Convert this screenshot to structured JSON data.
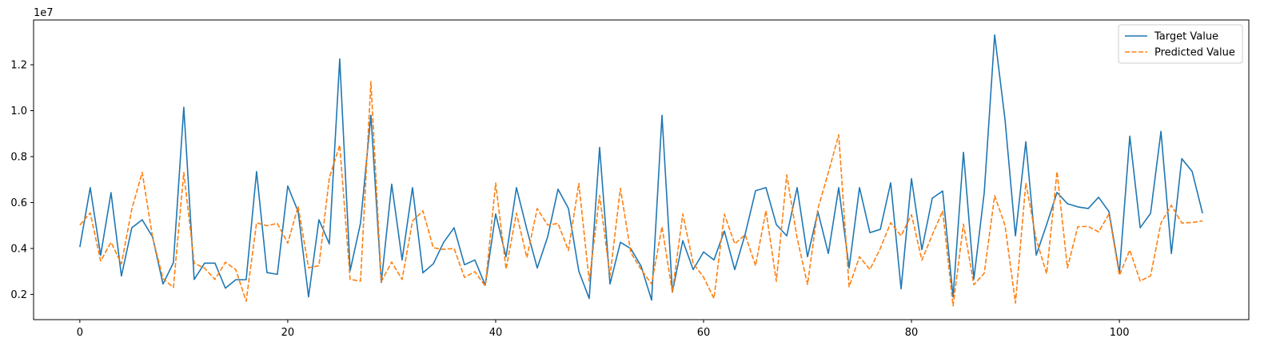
{
  "chart_data": {
    "type": "line",
    "title": "",
    "xlabel": "",
    "ylabel": "",
    "y_offset_label": "1e7",
    "y_scale": 10000000,
    "xlim": [
      -4.45,
      112.45
    ],
    "ylim": [
      900000,
      13950000
    ],
    "x_ticks": [
      0,
      20,
      40,
      60,
      80,
      100
    ],
    "x_tick_labels": [
      "0",
      "20",
      "40",
      "60",
      "80",
      "100"
    ],
    "y_ticks": [
      2000000,
      4000000,
      6000000,
      8000000,
      10000000,
      12000000
    ],
    "y_tick_labels": [
      "0.2",
      "0.4",
      "0.6",
      "0.8",
      "1.0",
      "1.2"
    ],
    "grid": false,
    "legend_position": "top-right",
    "x": [
      0,
      1,
      2,
      3,
      4,
      5,
      6,
      7,
      8,
      9,
      10,
      11,
      12,
      13,
      14,
      15,
      16,
      17,
      18,
      19,
      20,
      21,
      22,
      23,
      24,
      25,
      26,
      27,
      28,
      29,
      30,
      31,
      32,
      33,
      34,
      35,
      36,
      37,
      38,
      39,
      40,
      41,
      42,
      43,
      44,
      45,
      46,
      47,
      48,
      49,
      50,
      51,
      52,
      53,
      54,
      55,
      56,
      57,
      58,
      59,
      60,
      61,
      62,
      63,
      64,
      65,
      66,
      67,
      68,
      69,
      70,
      71,
      72,
      73,
      74,
      75,
      76,
      77,
      78,
      79,
      80,
      81,
      82,
      83,
      84,
      85,
      86,
      87,
      88,
      89,
      90,
      91,
      92,
      93,
      94,
      95,
      96,
      97,
      98,
      99,
      100,
      101,
      102,
      103,
      104,
      105,
      106,
      107,
      108
    ],
    "series": [
      {
        "name": "Target Value",
        "color": "#1f77b4",
        "dash": "solid",
        "values": [
          4060000,
          6650000,
          3700000,
          6430000,
          2800000,
          4900000,
          5250000,
          4500000,
          2450000,
          3380000,
          10150000,
          2650000,
          3360000,
          3360000,
          2270000,
          2640000,
          2640000,
          7350000,
          2950000,
          2870000,
          6720000,
          5600000,
          1890000,
          5250000,
          4200000,
          12250000,
          3030000,
          5100000,
          9800000,
          2520000,
          6800000,
          3500000,
          6650000,
          2940000,
          3330000,
          4270000,
          4900000,
          3290000,
          3500000,
          2400000,
          5500000,
          3640000,
          6650000,
          4830000,
          3150000,
          4500000,
          6580000,
          5740000,
          3010000,
          1820000,
          8400000,
          2450000,
          4270000,
          3990000,
          3220000,
          1750000,
          9800000,
          2100000,
          4340000,
          3080000,
          3850000,
          3500000,
          4760000,
          3080000,
          4620000,
          6510000,
          6650000,
          5040000,
          4550000,
          6650000,
          3640000,
          5600000,
          3780000,
          6650000,
          3150000,
          6650000,
          4690000,
          4830000,
          6860000,
          2240000,
          7040000,
          3950000,
          6190000,
          6500000,
          1890000,
          8190000,
          2660000,
          6440000,
          13300000,
          9600000,
          4550000,
          8645000,
          3710000,
          5040000,
          6440000,
          5950000,
          5810000,
          5740000,
          6230000,
          5600000,
          2940000,
          8890000,
          4900000,
          5530000,
          9100000,
          3780000,
          7910000,
          7350000,
          5530000
        ]
      },
      {
        "name": "Predicted Value",
        "color": "#ff7f0e",
        "dash": "dashed",
        "values": [
          5020000,
          5550000,
          3450000,
          4270000,
          3330000,
          5720000,
          7310000,
          4480000,
          2690000,
          2300000,
          7310000,
          3360000,
          3140000,
          2650000,
          3400000,
          3080000,
          1700000,
          5120000,
          4990000,
          5090000,
          4230000,
          5840000,
          3160000,
          3250000,
          7080000,
          8500000,
          2650000,
          2580000,
          11270000,
          2560000,
          3410000,
          2650000,
          5190000,
          5640000,
          4030000,
          3960000,
          4000000,
          2740000,
          2990000,
          2360000,
          6850000,
          3100000,
          5540000,
          3600000,
          5740000,
          5020000,
          5090000,
          3910000,
          6830000,
          2580000,
          6310000,
          2800000,
          6620000,
          3820000,
          3080000,
          2450000,
          4950000,
          2100000,
          5500000,
          3350000,
          2750000,
          1820000,
          5490000,
          4200000,
          4600000,
          3250000,
          5650000,
          2570000,
          7200000,
          4450000,
          2430000,
          5740000,
          7300000,
          8950000,
          2330000,
          3640000,
          3080000,
          4000000,
          5120000,
          4550000,
          5470000,
          3490000,
          4590000,
          5640000,
          1500000,
          5060000,
          2420000,
          2920000,
          6300000,
          5000000,
          1620000,
          6850000,
          4400000,
          2900000,
          7350000,
          3150000,
          4950000,
          4960000,
          4720000,
          5500000,
          2830000,
          3930000,
          2580000,
          2810000,
          5110000,
          5880000,
          5110000,
          5130000,
          5200000
        ]
      }
    ]
  }
}
